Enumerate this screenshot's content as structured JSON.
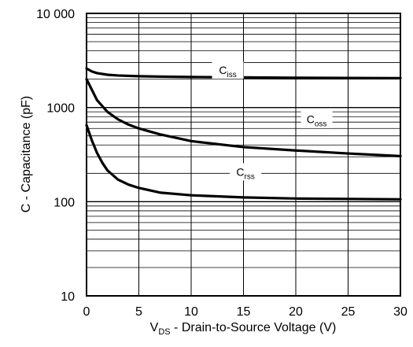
{
  "chart_data": {
    "type": "line",
    "title": "",
    "xlabel": {
      "main": "V",
      "sub": "DS",
      "rest": " - Drain-to-Source Voltage (V)"
    },
    "ylabel": "C - Capacitance (pF)",
    "xlim": [
      0,
      30
    ],
    "ylim": [
      10,
      10000
    ],
    "yscale": "log",
    "grid": true,
    "x_ticks": [
      0,
      5,
      10,
      15,
      20,
      25,
      30
    ],
    "x_tick_labels": [
      "0",
      "5",
      "10",
      "15",
      "20",
      "25",
      "30"
    ],
    "y_ticks": [
      10,
      100,
      1000,
      10000
    ],
    "y_tick_labels": [
      "10",
      "100",
      "1000",
      "10 000"
    ],
    "series": [
      {
        "name": "Ciss",
        "label_main": "C",
        "label_sub": "iss",
        "label_at": [
          13.5,
          2400
        ],
        "x": [
          0,
          0.5,
          1,
          2,
          3,
          5,
          7,
          10,
          15,
          20,
          25,
          30
        ],
        "y": [
          2600,
          2420,
          2320,
          2230,
          2190,
          2150,
          2130,
          2110,
          2090,
          2070,
          2060,
          2050
        ]
      },
      {
        "name": "Coss",
        "label_main": "C",
        "label_sub": "oss",
        "label_at": [
          22,
          720
        ],
        "x": [
          0,
          0.5,
          1,
          2,
          3,
          4,
          5,
          7,
          10,
          15,
          20,
          25,
          30
        ],
        "y": [
          2000,
          1550,
          1200,
          900,
          750,
          660,
          600,
          520,
          440,
          380,
          350,
          325,
          305
        ]
      },
      {
        "name": "Crss",
        "label_main": "C",
        "label_sub": "rss",
        "label_at": [
          15.2,
          200
        ],
        "x": [
          0,
          0.5,
          1,
          1.5,
          2,
          3,
          4,
          5,
          7,
          10,
          15,
          20,
          25,
          30
        ],
        "y": [
          650,
          450,
          330,
          260,
          215,
          172,
          152,
          140,
          125,
          117,
          111,
          108,
          107,
          106
        ]
      }
    ]
  }
}
